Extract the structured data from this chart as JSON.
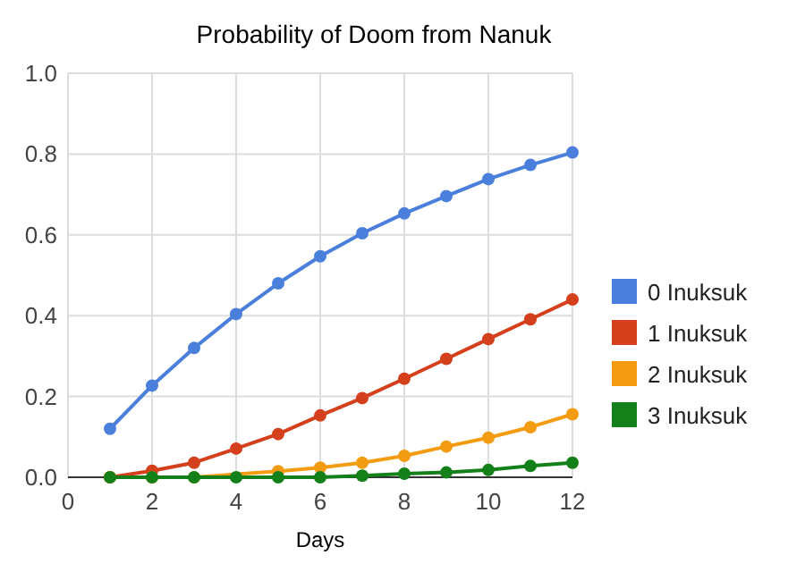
{
  "chart_data": {
    "type": "line",
    "title": "Probability of Doom from Nanuk",
    "xlabel": "Days",
    "x": [
      1,
      2,
      3,
      4,
      5,
      6,
      7,
      8,
      9,
      10,
      11,
      12
    ],
    "series": [
      {
        "name": "0 Inuksuk",
        "color": "#4a7fdc",
        "values": [
          0.12,
          0.227,
          0.32,
          0.404,
          0.48,
          0.547,
          0.604,
          0.653,
          0.696,
          0.738,
          0.773,
          0.804
        ]
      },
      {
        "name": "1 Inuksuk",
        "color": "#d4401c",
        "values": [
          0,
          0.016,
          0.036,
          0.071,
          0.107,
          0.153,
          0.196,
          0.244,
          0.293,
          0.342,
          0.391,
          0.44
        ]
      },
      {
        "name": "2 Inuksuk",
        "color": "#f39c12",
        "values": [
          0,
          0,
          0,
          null,
          0.015,
          0.024,
          0.036,
          0.053,
          0.076,
          0.098,
          0.124,
          0.156
        ]
      },
      {
        "name": "3 Inuksuk",
        "color": "#13801a",
        "values": [
          0,
          0,
          0,
          0,
          0,
          0,
          0.004,
          0.009,
          0.012,
          0.018,
          0.028,
          0.036
        ]
      }
    ],
    "xlim": [
      0,
      12
    ],
    "xticks": [
      0,
      2,
      4,
      6,
      8,
      10,
      12
    ],
    "ylim": [
      0,
      1
    ],
    "yticks": [
      {
        "value": 0,
        "label": "0.0"
      },
      {
        "value": 0.2,
        "label": "0.2"
      },
      {
        "value": 0.4,
        "label": "0.4"
      },
      {
        "value": 0.6,
        "label": "0.6"
      },
      {
        "value": 0.8,
        "label": "0.8"
      },
      {
        "value": 1,
        "label": "1.0"
      }
    ],
    "grid": true,
    "legend": "right",
    "marker": "circle",
    "line_style": "solid"
  }
}
